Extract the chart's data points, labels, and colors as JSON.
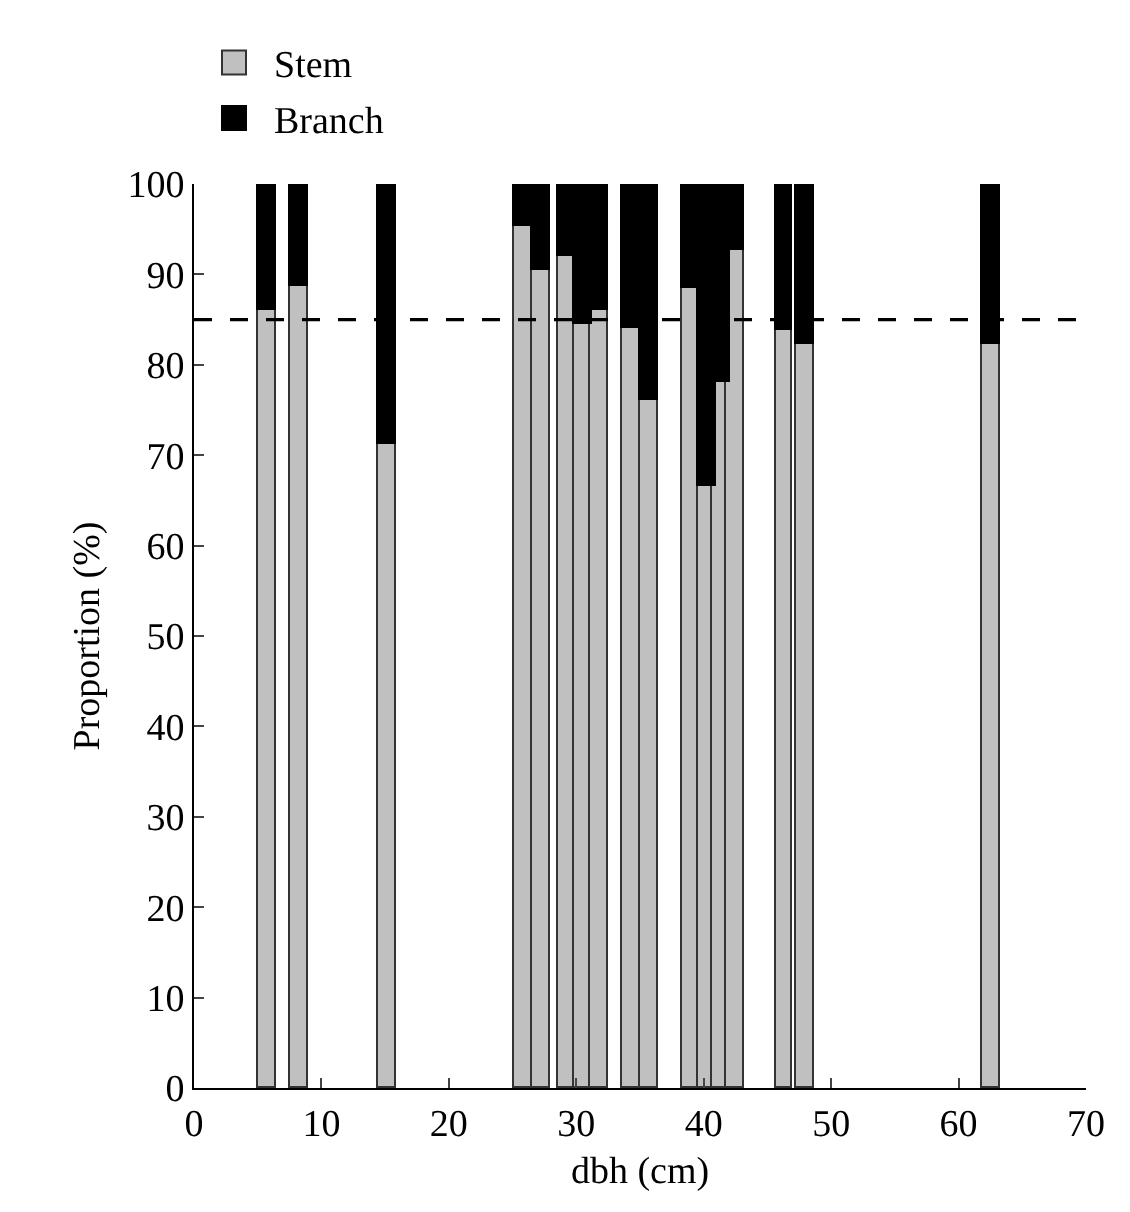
{
  "chart_data": {
    "type": "bar",
    "stacked": true,
    "xlabel": "dbh (cm)",
    "ylabel": "Proportion (%)",
    "x": [
      5.8,
      8.2,
      15.2,
      25.8,
      27.2,
      29.2,
      30.5,
      31.8,
      34.3,
      35.7,
      39.0,
      40.3,
      41.4,
      42.5,
      46.3,
      48.0,
      62.5
    ],
    "series": [
      {
        "name": "Stem",
        "color": "#c0c0c0",
        "values": [
          86,
          88.7,
          71.3,
          95.4,
          90.4,
          92,
          84.6,
          86.1,
          84.1,
          76.1,
          88.5,
          66.7,
          78,
          92.8,
          83.9,
          82.2,
          82.2
        ]
      },
      {
        "name": "Branch",
        "color": "#000000",
        "values": [
          14,
          11.3,
          28.7,
          4.6,
          9.6,
          8,
          15.4,
          13.9,
          15.9,
          23.9,
          11.5,
          33.3,
          22,
          7.2,
          16.1,
          17.8,
          17.8
        ]
      }
    ],
    "xlim": [
      0,
      70
    ],
    "xticks": [
      0,
      10,
      20,
      30,
      40,
      50,
      60,
      70
    ],
    "ylim": [
      0,
      100
    ],
    "yticks": [
      0,
      10,
      20,
      30,
      40,
      50,
      60,
      70,
      80,
      90,
      100
    ],
    "grid": false,
    "legend": "top left",
    "ref_lines": [
      {
        "axis": "y",
        "value": 85,
        "line_style": "dashed",
        "color": "#000000"
      }
    ]
  }
}
